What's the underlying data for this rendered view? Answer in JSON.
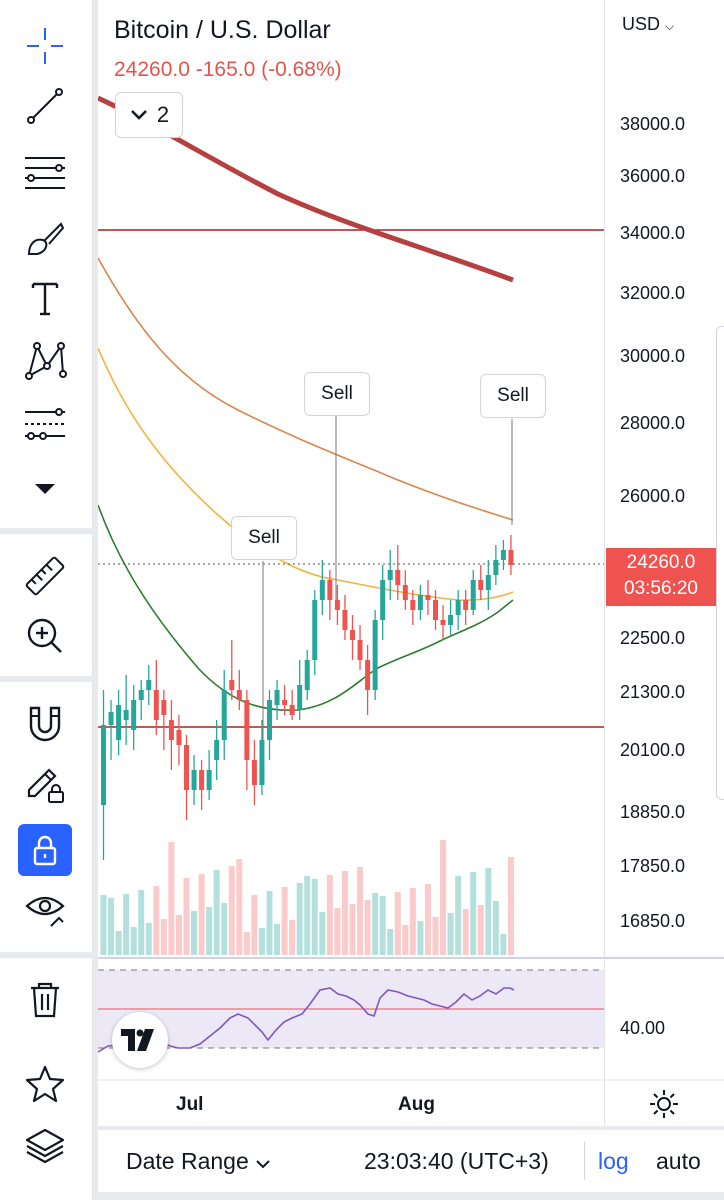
{
  "header": {
    "title": "Bitcoin / U.S. Dollar",
    "quote": "24260.0  -165.0 (-0.68%)",
    "indicator_count": "2",
    "currency": "USD"
  },
  "price_axis": {
    "labels": [
      "38000.0",
      "36000.0",
      "34000.0",
      "32000.0",
      "30000.0",
      "28000.0",
      "26000.0",
      "22500.0",
      "21300.0",
      "20100.0",
      "18850.0",
      "17850.0",
      "16850.0"
    ],
    "last_price": "24260.0",
    "countdown": "03:56:20"
  },
  "rsi": {
    "level_label": "40.00"
  },
  "time_axis": {
    "labels": [
      "Jul",
      "Aug"
    ]
  },
  "signals": [
    "Sell",
    "Sell",
    "Sell"
  ],
  "bottom": {
    "date_range": "Date Range",
    "clock": "23:03:40 (UTC+3)",
    "log": "log",
    "auto": "auto"
  },
  "colors": {
    "up": "#26a69a",
    "down": "#ef5350",
    "accent": "#2962ff",
    "ma_long": "#b5403f",
    "ma_orange": "#d9864b",
    "ma_yellow": "#f2b43d",
    "ma_green": "#2e7d32",
    "rsi_line": "#7e57c2"
  },
  "toolbar_icons": [
    "crosshair-icon",
    "trend-line-icon",
    "fib-icon",
    "brush-icon",
    "text-icon",
    "pattern-icon",
    "prediction-icon",
    "more-tools-icon",
    "ruler-icon",
    "zoom-in-icon",
    "magnet-icon",
    "lock-drawings-icon",
    "lock-icon",
    "eye-icon",
    "trash-icon",
    "star-icon",
    "layers-icon"
  ]
}
